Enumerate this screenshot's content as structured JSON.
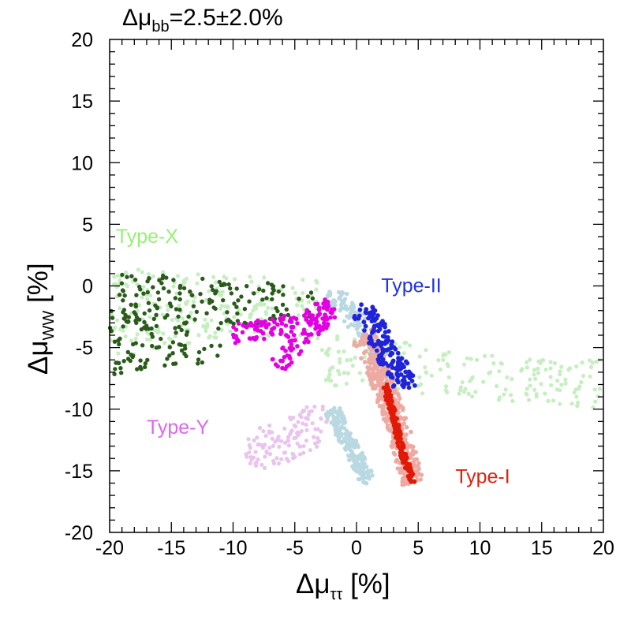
{
  "chart_data": {
    "type": "scatter",
    "title_prefix": "Δμ",
    "title_subscript": "bb",
    "title_suffix": "=2.5±2.0%",
    "xlabel_prefix": "Δμ",
    "xlabel_subscript": "ττ",
    "xlabel_suffix": " [%]",
    "ylabel_prefix": "Δμ",
    "ylabel_subscript": "WW",
    "ylabel_suffix": " [%]",
    "xlim": [
      -20,
      20
    ],
    "ylim": [
      -20,
      20
    ],
    "xticks": [
      -20,
      -15,
      -10,
      -5,
      0,
      5,
      10,
      15,
      20
    ],
    "yticks": [
      -20,
      -15,
      -10,
      -5,
      0,
      5,
      10,
      15,
      20
    ],
    "xtick_labels": [
      "-20",
      "-15",
      "-10",
      "-5",
      "0",
      "5",
      "10",
      "15",
      "20"
    ],
    "ytick_labels": [
      "-20",
      "-15",
      "-10",
      "-5",
      "0",
      "5",
      "10",
      "15",
      "20"
    ],
    "grid": false,
    "labels": [
      {
        "text": "Type-X",
        "x": -19.5,
        "y": 3.5,
        "color": "#99ee77"
      },
      {
        "text": "Type-II",
        "x": 2.0,
        "y": -0.5,
        "color": "#2233dd"
      },
      {
        "text": "Type-Y",
        "x": -17.0,
        "y": -12.0,
        "color": "#dd66ee"
      },
      {
        "text": "Type-I",
        "x": 8.0,
        "y": -16.0,
        "color": "#dd2211"
      }
    ],
    "series": [
      {
        "color": "#c6eec0",
        "r": 2.6,
        "kind": "scatter",
        "count": 420,
        "seed": 11,
        "polygons": [
          [
            [
              -20,
              1.5
            ],
            [
              -3,
              0.5
            ],
            [
              -3,
              -2.5
            ],
            [
              -20,
              -6
            ]
          ],
          [
            [
              -20,
              -3
            ],
            [
              -3,
              -4.5
            ],
            [
              0,
              -5
            ],
            [
              20,
              -9
            ],
            [
              20,
              -7
            ],
            [
              0,
              -4
            ],
            [
              -20,
              -1
            ]
          ],
          [
            [
              -3,
              -5
            ],
            [
              20,
              -6
            ],
            [
              20,
              -10
            ],
            [
              -3,
              -8
            ]
          ]
        ]
      },
      {
        "color": "#e9c4ee",
        "r": 2.6,
        "kind": "scatter",
        "count": 120,
        "seed": 23,
        "polygons": [
          [
            [
              -9,
              -12
            ],
            [
              -3.5,
              -9.5
            ],
            [
              -2,
              -10
            ],
            [
              -3,
              -13
            ],
            [
              -8,
              -15.5
            ],
            [
              -9,
              -14
            ]
          ]
        ]
      },
      {
        "color": "#b9d8e2",
        "r": 2.7,
        "kind": "band",
        "count": 170,
        "seed": 31,
        "path": [
          [
            -2,
            -10
          ],
          [
            -1,
            -12
          ],
          [
            0,
            -14
          ],
          [
            1,
            -16
          ]
        ],
        "width": 0.6
      },
      {
        "color": "#b9d8e2",
        "r": 2.7,
        "kind": "band",
        "count": 120,
        "seed": 37,
        "path": [
          [
            -2.5,
            -0.8
          ],
          [
            -1,
            -1.5
          ],
          [
            0,
            -3
          ],
          [
            1,
            -4.5
          ],
          [
            2,
            -6
          ]
        ],
        "width": 0.7
      },
      {
        "color": "#ecaaa2",
        "r": 2.8,
        "kind": "band",
        "count": 420,
        "seed": 41,
        "path": [
          [
            0.5,
            -4
          ],
          [
            1.5,
            -6
          ],
          [
            2.5,
            -9
          ],
          [
            3.5,
            -12
          ],
          [
            4.5,
            -16
          ]
        ],
        "width": 0.9
      },
      {
        "color": "#2c5a1c",
        "r": 2.7,
        "kind": "scatter",
        "count": 230,
        "seed": 53,
        "polygons": [
          [
            [
              -20,
              1.2
            ],
            [
              -5.5,
              0.2
            ],
            [
              -5.5,
              -1.5
            ],
            [
              -20,
              -2
            ]
          ],
          [
            [
              -20,
              -2
            ],
            [
              -3.5,
              -0.5
            ],
            [
              -3.5,
              -2.5
            ],
            [
              -20,
              -5
            ]
          ],
          [
            [
              -20,
              -4.5
            ],
            [
              -11,
              -4
            ],
            [
              -11,
              -6
            ],
            [
              -20,
              -7.5
            ]
          ]
        ]
      },
      {
        "color": "#e300e3",
        "r": 2.8,
        "kind": "band",
        "count": 110,
        "seed": 61,
        "path": [
          [
            -10,
            -4
          ],
          [
            -7,
            -3.5
          ],
          [
            -4,
            -3
          ],
          [
            -2,
            -1.5
          ]
        ],
        "width": 0.7
      },
      {
        "color": "#e300e3",
        "r": 2.8,
        "kind": "band",
        "count": 70,
        "seed": 67,
        "path": [
          [
            -6.5,
            -6.5
          ],
          [
            -5,
            -5
          ],
          [
            -3.5,
            -3.5
          ],
          [
            -2,
            -2
          ]
        ],
        "width": 0.6
      },
      {
        "color": "#1f24d8",
        "r": 2.9,
        "kind": "band",
        "count": 150,
        "seed": 71,
        "path": [
          [
            0.3,
            -1.5
          ],
          [
            1.5,
            -3.5
          ],
          [
            2.5,
            -5.5
          ],
          [
            3.5,
            -7
          ],
          [
            4,
            -8.5
          ]
        ],
        "width": 0.9
      },
      {
        "color": "#e01a06",
        "r": 3.0,
        "kind": "band",
        "count": 160,
        "seed": 83,
        "path": [
          [
            2.3,
            -8
          ],
          [
            3,
            -10.5
          ],
          [
            3.7,
            -13.5
          ],
          [
            4.6,
            -16
          ]
        ],
        "width": 0.22
      }
    ]
  }
}
